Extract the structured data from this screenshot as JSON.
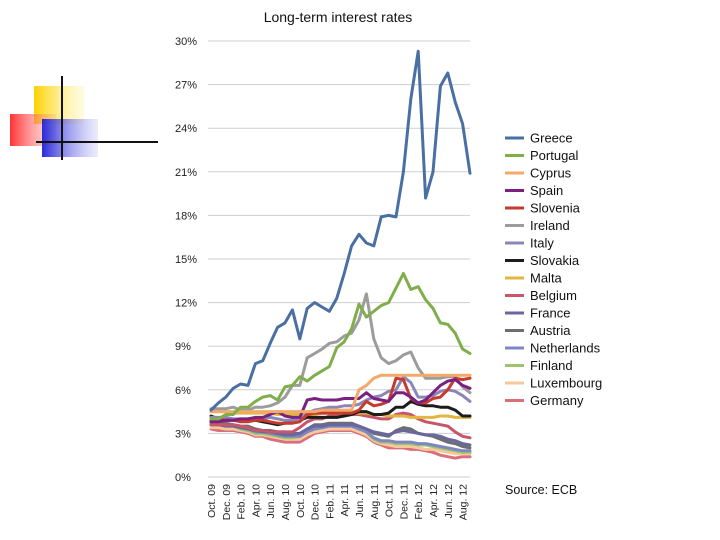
{
  "chart_data": {
    "type": "line",
    "title": "Long-term interest rates",
    "xlabel": "",
    "ylabel": "",
    "ylim": [
      0,
      30
    ],
    "y_ticks": [
      "0%",
      "3%",
      "6%",
      "9%",
      "12%",
      "15%",
      "18%",
      "21%",
      "24%",
      "27%",
      "30%"
    ],
    "x_tick_labels": [
      "Oct. 09",
      "Dec. 09",
      "Feb. 10",
      "Apr. 10",
      "Jun. 10",
      "Aug. 10",
      "Oct. 10",
      "Dec. 10",
      "Feb. 11",
      "Apr. 11",
      "Jun. 11",
      "Aug. 11",
      "Oct. 11",
      "Dec. 11",
      "Feb. 12",
      "Apr. 12",
      "Jun. 12",
      "Aug. 12"
    ],
    "x_count": 36,
    "source": "Source: ECB",
    "series": [
      {
        "name": "Greece",
        "color": "#4a6fa3",
        "values": [
          4.6,
          5.1,
          5.5,
          6.1,
          6.4,
          6.3,
          7.8,
          8.0,
          9.2,
          10.3,
          10.6,
          11.5,
          9.5,
          11.6,
          12.0,
          11.7,
          11.4,
          12.3,
          14.0,
          15.9,
          16.7,
          16.1,
          15.9,
          17.9,
          18.0,
          17.9,
          21.0,
          26.0,
          29.3,
          19.2,
          21.0,
          26.9,
          27.8,
          25.8,
          24.3,
          20.9
        ]
      },
      {
        "name": "Portugal",
        "color": "#7fae4b",
        "values": [
          4.0,
          4.0,
          4.3,
          4.3,
          4.8,
          4.8,
          5.2,
          5.5,
          5.6,
          5.3,
          6.2,
          6.3,
          6.9,
          6.6,
          7.0,
          7.3,
          7.6,
          8.9,
          9.3,
          10.2,
          11.9,
          11.0,
          11.4,
          11.8,
          12.0,
          13.0,
          14.0,
          12.9,
          13.1,
          12.2,
          11.6,
          10.6,
          10.5,
          9.9,
          8.8,
          8.5
        ]
      },
      {
        "name": "Cyprus",
        "color": "#f2a96a",
        "values": [
          4.5,
          4.5,
          4.5,
          4.5,
          4.5,
          4.5,
          4.5,
          4.5,
          4.5,
          4.5,
          4.5,
          4.5,
          4.5,
          4.5,
          4.5,
          4.6,
          4.6,
          4.6,
          4.6,
          4.6,
          6.0,
          6.3,
          6.8,
          7.0,
          7.0,
          7.0,
          7.0,
          7.0,
          7.0,
          7.0,
          7.0,
          7.0,
          7.0,
          7.0,
          7.0,
          7.0
        ]
      },
      {
        "name": "Spain",
        "color": "#7a2180",
        "values": [
          3.8,
          3.8,
          3.9,
          3.9,
          4.0,
          4.0,
          4.1,
          4.1,
          4.3,
          4.5,
          4.2,
          4.1,
          4.1,
          5.3,
          5.4,
          5.3,
          5.3,
          5.3,
          5.4,
          5.4,
          5.4,
          5.8,
          5.4,
          5.3,
          5.2,
          5.8,
          5.8,
          5.5,
          5.1,
          5.3,
          5.8,
          6.3,
          6.6,
          6.7,
          6.3,
          6.1
        ]
      },
      {
        "name": "Slovenia",
        "color": "#c63b2d",
        "values": [
          3.9,
          3.9,
          3.9,
          3.9,
          3.8,
          3.8,
          3.9,
          3.9,
          3.8,
          3.7,
          3.7,
          3.7,
          3.8,
          4.3,
          4.4,
          4.4,
          4.4,
          4.4,
          4.4,
          4.4,
          4.6,
          5.2,
          4.9,
          5.0,
          5.2,
          6.8,
          6.7,
          5.4,
          5.1,
          5.1,
          5.4,
          5.5,
          6.0,
          6.8,
          6.7,
          6.8
        ]
      },
      {
        "name": "Ireland",
        "color": "#9c9c9c",
        "values": [
          4.7,
          4.7,
          4.7,
          4.8,
          4.6,
          4.6,
          4.8,
          4.8,
          4.9,
          5.1,
          5.5,
          6.3,
          6.3,
          8.2,
          8.5,
          8.8,
          9.2,
          9.3,
          9.7,
          9.9,
          10.8,
          12.6,
          9.5,
          8.2,
          7.8,
          8.0,
          8.4,
          8.6,
          7.5,
          6.8,
          6.8,
          6.8,
          6.9,
          6.9,
          6.2,
          5.8
        ]
      },
      {
        "name": "Italy",
        "color": "#8a87b8",
        "values": [
          4.1,
          4.1,
          4.1,
          4.0,
          4.0,
          3.9,
          4.0,
          4.0,
          4.1,
          4.0,
          3.9,
          3.9,
          3.9,
          4.4,
          4.6,
          4.7,
          4.8,
          4.8,
          4.9,
          4.9,
          5.0,
          5.3,
          5.5,
          5.6,
          5.9,
          6.0,
          6.9,
          6.5,
          5.5,
          5.5,
          5.6,
          5.9,
          6.0,
          5.9,
          5.6,
          5.2
        ]
      },
      {
        "name": "Slovakia",
        "color": "#1c1c1c",
        "values": [
          4.2,
          4.0,
          3.9,
          3.9,
          3.9,
          3.9,
          3.9,
          3.8,
          3.7,
          3.6,
          3.7,
          3.8,
          3.9,
          4.1,
          4.1,
          4.1,
          4.1,
          4.1,
          4.2,
          4.3,
          4.5,
          4.5,
          4.3,
          4.3,
          4.4,
          4.8,
          4.8,
          5.2,
          5.0,
          4.9,
          4.9,
          4.8,
          4.8,
          4.6,
          4.2,
          4.2
        ]
      },
      {
        "name": "Malta",
        "color": "#e3b640",
        "values": [
          4.5,
          4.5,
          4.5,
          4.4,
          4.4,
          4.4,
          4.4,
          4.4,
          4.4,
          4.3,
          4.3,
          4.3,
          4.3,
          4.3,
          4.3,
          4.4,
          4.4,
          4.4,
          4.4,
          4.4,
          4.4,
          4.4,
          4.3,
          4.3,
          4.2,
          4.2,
          4.2,
          4.1,
          4.1,
          4.1,
          4.1,
          4.2,
          4.2,
          4.1,
          4.1,
          4.1
        ]
      },
      {
        "name": "Belgium",
        "color": "#c7566a",
        "values": [
          3.6,
          3.6,
          3.6,
          3.6,
          3.5,
          3.4,
          3.2,
          3.2,
          3.1,
          3.1,
          3.1,
          3.1,
          3.4,
          3.8,
          4.0,
          4.0,
          4.2,
          4.3,
          4.3,
          4.3,
          4.3,
          4.2,
          4.1,
          4.0,
          4.0,
          4.3,
          4.4,
          4.3,
          4.0,
          3.8,
          3.7,
          3.6,
          3.5,
          3.1,
          2.8,
          2.7
        ]
      },
      {
        "name": "France",
        "color": "#6a67a0",
        "values": [
          3.6,
          3.6,
          3.5,
          3.5,
          3.4,
          3.3,
          3.2,
          3.1,
          3.1,
          3.0,
          2.9,
          2.9,
          3.0,
          3.3,
          3.5,
          3.5,
          3.6,
          3.6,
          3.6,
          3.6,
          3.5,
          3.3,
          3.1,
          3.0,
          2.9,
          3.1,
          3.2,
          3.1,
          3.0,
          2.9,
          2.9,
          2.8,
          2.6,
          2.5,
          2.3,
          2.2
        ]
      },
      {
        "name": "Austria",
        "color": "#6e6e6e",
        "values": [
          3.9,
          3.8,
          3.7,
          3.6,
          3.5,
          3.5,
          3.3,
          3.2,
          3.2,
          3.1,
          3.1,
          3.0,
          3.0,
          3.3,
          3.6,
          3.6,
          3.7,
          3.7,
          3.7,
          3.7,
          3.5,
          3.3,
          3.0,
          2.9,
          2.8,
          3.2,
          3.4,
          3.3,
          3.0,
          2.9,
          2.8,
          2.6,
          2.4,
          2.3,
          2.1,
          2.0
        ]
      },
      {
        "name": "Netherlands",
        "color": "#7f87c2",
        "values": [
          3.7,
          3.7,
          3.6,
          3.6,
          3.4,
          3.3,
          3.1,
          3.1,
          3.0,
          2.9,
          2.8,
          2.8,
          2.8,
          3.1,
          3.3,
          3.4,
          3.5,
          3.5,
          3.5,
          3.5,
          3.3,
          3.1,
          2.7,
          2.5,
          2.5,
          2.4,
          2.4,
          2.4,
          2.3,
          2.3,
          2.2,
          2.1,
          2.0,
          1.9,
          1.8,
          1.8
        ]
      },
      {
        "name": "Finland",
        "color": "#9cc56b",
        "values": [
          3.6,
          3.6,
          3.5,
          3.5,
          3.3,
          3.2,
          3.0,
          3.0,
          2.9,
          2.8,
          2.7,
          2.7,
          2.8,
          3.1,
          3.3,
          3.4,
          3.5,
          3.5,
          3.5,
          3.5,
          3.3,
          3.1,
          2.6,
          2.4,
          2.4,
          2.3,
          2.3,
          2.3,
          2.2,
          2.2,
          2.1,
          2.0,
          1.9,
          1.8,
          1.7,
          1.7
        ]
      },
      {
        "name": "Luxembourg",
        "color": "#f6c89b",
        "values": [
          3.4,
          3.4,
          3.3,
          3.3,
          3.2,
          3.1,
          2.9,
          2.9,
          2.8,
          2.7,
          2.6,
          2.6,
          2.6,
          2.9,
          3.1,
          3.2,
          3.3,
          3.3,
          3.3,
          3.3,
          3.1,
          2.9,
          2.5,
          2.3,
          2.2,
          2.1,
          2.1,
          2.1,
          2.0,
          1.9,
          1.9,
          1.8,
          1.7,
          1.6,
          1.6,
          1.6
        ]
      },
      {
        "name": "Germany",
        "color": "#d96f7b",
        "values": [
          3.3,
          3.2,
          3.2,
          3.2,
          3.1,
          3.0,
          2.8,
          2.8,
          2.6,
          2.5,
          2.4,
          2.4,
          2.4,
          2.7,
          3.0,
          3.1,
          3.2,
          3.2,
          3.2,
          3.2,
          3.0,
          2.8,
          2.4,
          2.2,
          2.0,
          2.0,
          2.0,
          1.9,
          1.9,
          1.8,
          1.7,
          1.5,
          1.4,
          1.3,
          1.4,
          1.4
        ]
      }
    ]
  }
}
